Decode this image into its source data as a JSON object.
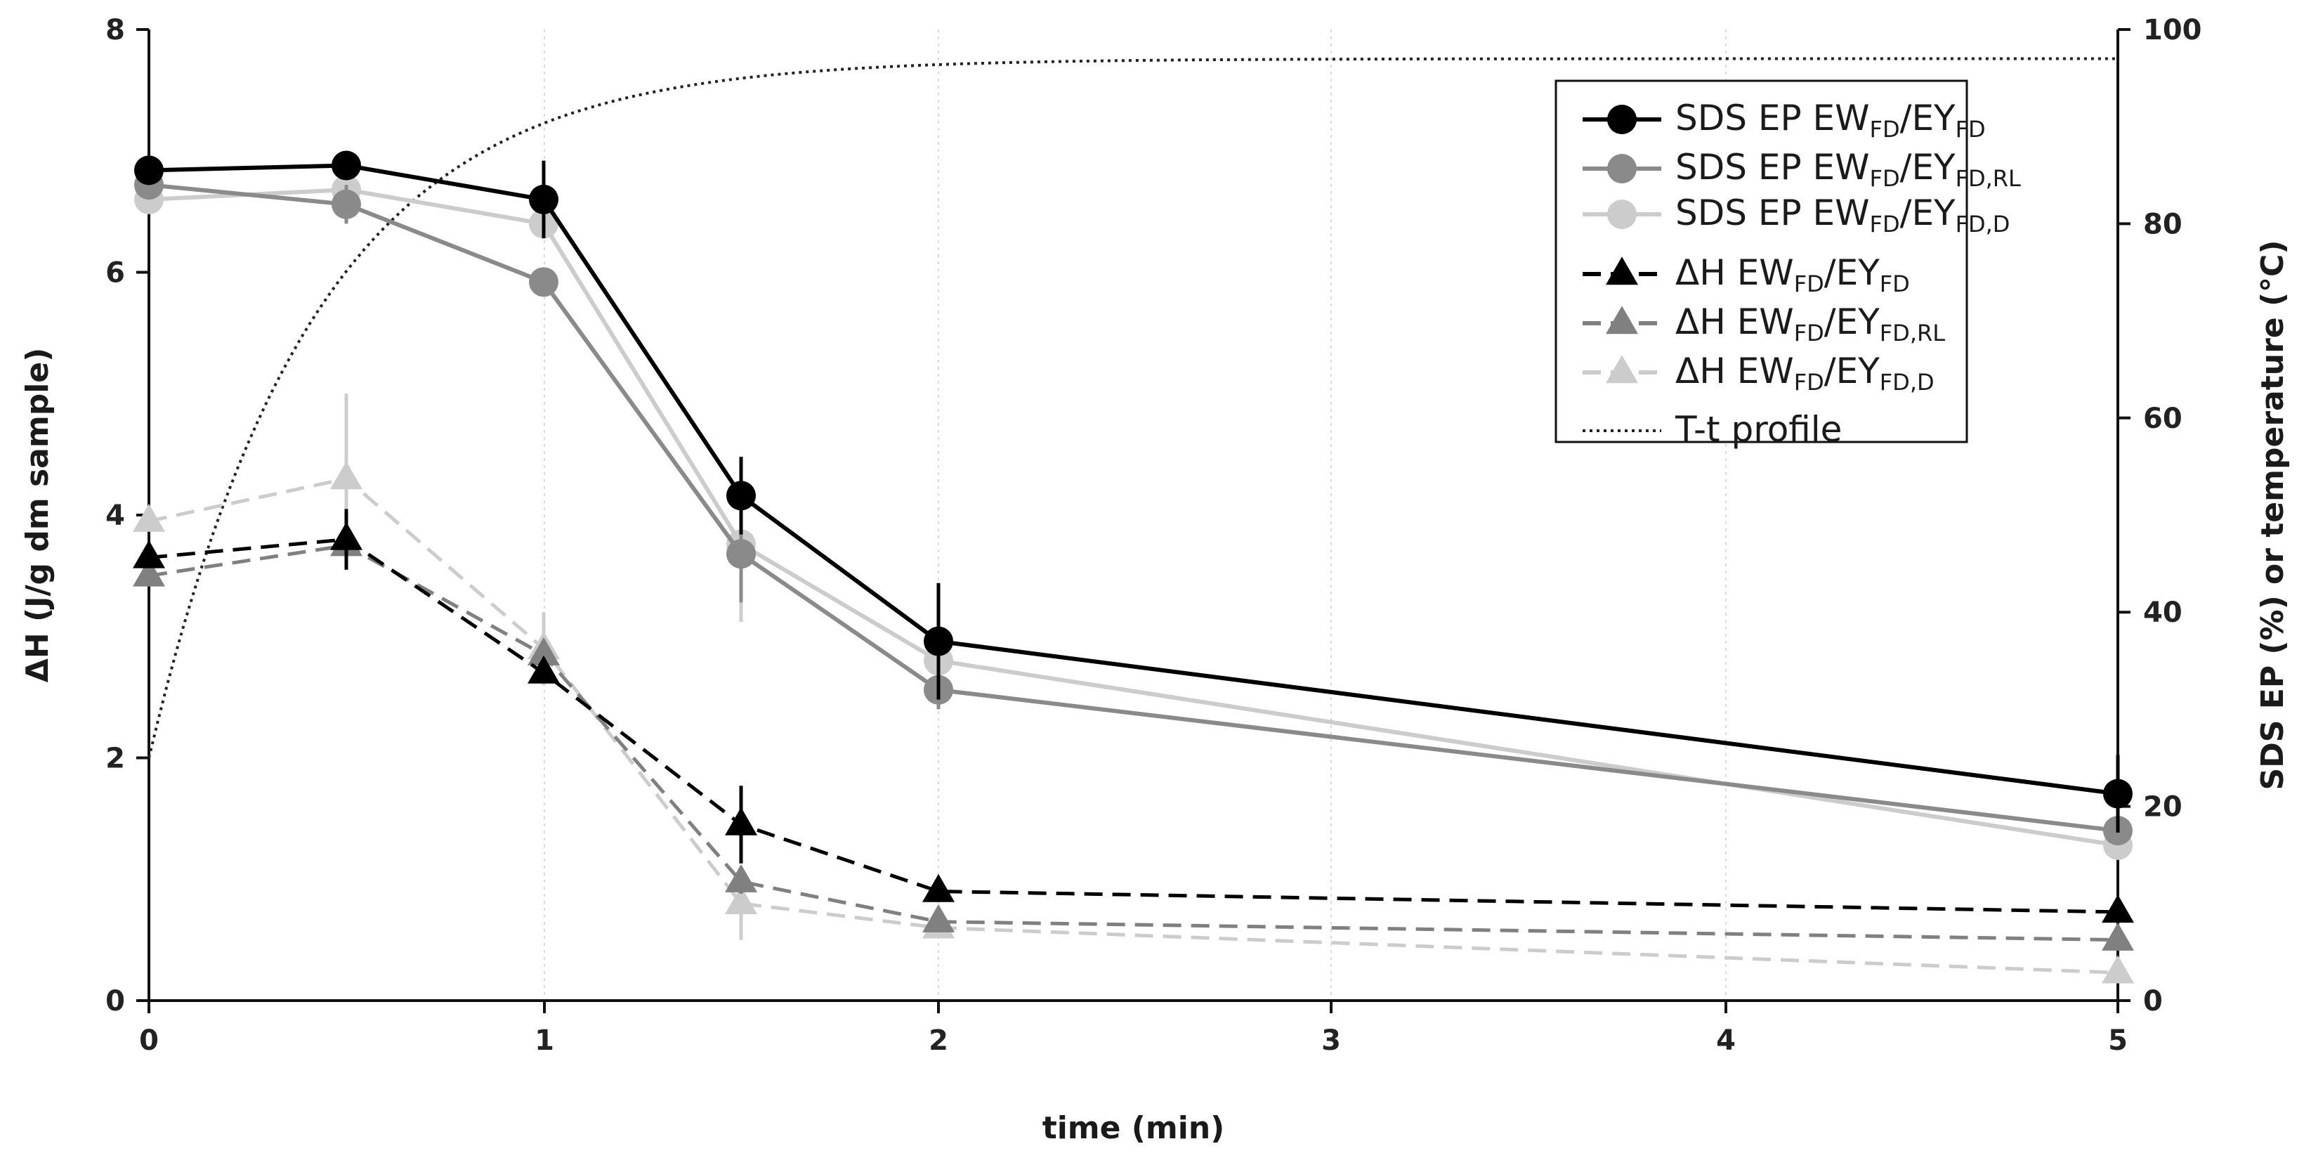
{
  "chart_data": {
    "type": "line",
    "xlabel": "time (min)",
    "ylabel": "ΔH (J/g dm sample)",
    "y2label": "SDS EP (%) or temperature (°C)",
    "x_categories": [
      "0",
      "1",
      "2",
      "3",
      "4",
      "5"
    ],
    "y_ticks": [
      "0",
      "2",
      "4",
      "6",
      "8"
    ],
    "y2_ticks": [
      "0",
      "20",
      "40",
      "60",
      "80",
      "100"
    ],
    "ylim": [
      0,
      8
    ],
    "y2lim": [
      0,
      100
    ],
    "grid": "vertical dotted",
    "legend_position": "top-right",
    "series": [
      {
        "id": "sds_fd",
        "axis": "right",
        "marker": "circle",
        "dash": "solid",
        "color": "#000000",
        "label_main": "SDS EP EW",
        "label_sub1": "FD",
        "label_mid": "/EY",
        "label_sub2": "FD",
        "points": [
          {
            "x": 0,
            "y": 85.5,
            "err": 0.5
          },
          {
            "x": 0.5,
            "y": 86,
            "err": 1
          },
          {
            "x": 1,
            "y": 82.5,
            "err": 4
          },
          {
            "x": 1.5,
            "y": 52,
            "err": 4
          },
          {
            "x": 2,
            "y": 37,
            "err": 6
          },
          {
            "x": 5,
            "y": 21.3,
            "err": 4
          }
        ]
      },
      {
        "id": "sds_fdrl",
        "axis": "right",
        "marker": "circle",
        "dash": "solid",
        "color": "#8a8a8a",
        "label_main": "SDS EP EW",
        "label_sub1": "FD",
        "label_mid": "/EY",
        "label_sub2": "FD,RL",
        "points": [
          {
            "x": 0,
            "y": 84,
            "err": 1.5
          },
          {
            "x": 0.5,
            "y": 82,
            "err": 2
          },
          {
            "x": 1,
            "y": 74,
            "err": 0
          },
          {
            "x": 1.5,
            "y": 46,
            "err": 5
          },
          {
            "x": 2,
            "y": 32,
            "err": 2
          },
          {
            "x": 5,
            "y": 17.5,
            "err": 0
          }
        ]
      },
      {
        "id": "sds_fdd",
        "axis": "right",
        "marker": "circle",
        "dash": "solid",
        "color": "#cccccc",
        "label_main": "SDS EP EW",
        "label_sub1": "FD",
        "label_mid": "/EY",
        "label_sub2": "FD,D",
        "points": [
          {
            "x": 0,
            "y": 82.5,
            "err": 1
          },
          {
            "x": 0.5,
            "y": 83.5,
            "err": 1
          },
          {
            "x": 1,
            "y": 80,
            "err": 1
          },
          {
            "x": 1.5,
            "y": 47,
            "err": 8
          },
          {
            "x": 2,
            "y": 35,
            "err": 2
          },
          {
            "x": 5,
            "y": 16,
            "err": 1
          }
        ]
      },
      {
        "id": "dh_fd",
        "axis": "left",
        "marker": "triangle",
        "dash": "dashed",
        "color": "#000000",
        "label_main": "ΔH EW",
        "label_sub1": "FD",
        "label_mid": "/EY",
        "label_sub2": "FD",
        "points": [
          {
            "x": 0,
            "y": 3.65,
            "err": 0.05
          },
          {
            "x": 0.5,
            "y": 3.8,
            "err": 0.25
          },
          {
            "x": 1,
            "y": 2.7,
            "err": 0.05
          },
          {
            "x": 1.5,
            "y": 1.45,
            "err": 0.32
          },
          {
            "x": 2,
            "y": 0.9,
            "err": 0.05
          },
          {
            "x": 5,
            "y": 0.73,
            "err": 0.05
          }
        ]
      },
      {
        "id": "dh_fdrl",
        "axis": "left",
        "marker": "triangle",
        "dash": "dashed",
        "color": "#808080",
        "label_main": "ΔH EW",
        "label_sub1": "FD",
        "label_mid": "/EY",
        "label_sub2": "FD,RL",
        "points": [
          {
            "x": 0,
            "y": 3.5,
            "err": 0.05
          },
          {
            "x": 0.5,
            "y": 3.75,
            "err": 0.1
          },
          {
            "x": 1,
            "y": 2.85,
            "err": 0.05
          },
          {
            "x": 1.5,
            "y": 0.98,
            "err": 0.1
          },
          {
            "x": 2,
            "y": 0.65,
            "err": 0.05
          },
          {
            "x": 5,
            "y": 0.5,
            "err": 0.05
          }
        ]
      },
      {
        "id": "dh_fdd",
        "axis": "left",
        "marker": "triangle",
        "dash": "dashed",
        "color": "#cccccc",
        "label_main": "ΔH EW",
        "label_sub1": "FD",
        "label_mid": "/EY",
        "label_sub2": "FD,D",
        "points": [
          {
            "x": 0,
            "y": 3.95,
            "err": 0.05
          },
          {
            "x": 0.5,
            "y": 4.3,
            "err": 0.7
          },
          {
            "x": 1,
            "y": 2.9,
            "err": 0.3
          },
          {
            "x": 1.5,
            "y": 0.8,
            "err": 0.3
          },
          {
            "x": 2,
            "y": 0.6,
            "err": 0.05
          },
          {
            "x": 5,
            "y": 0.23,
            "err": 0.05
          }
        ]
      },
      {
        "id": "tt_profile",
        "axis": "right",
        "marker": "none",
        "dash": "dotted",
        "color": "#222222",
        "label_main": "T-t profile",
        "label_sub1": "",
        "label_mid": "",
        "label_sub2": "",
        "curve": {
          "start_x": 0,
          "start_y": 25,
          "plateau_y": 97,
          "end_x": 5,
          "time_constant_min": 0.42
        }
      }
    ]
  }
}
